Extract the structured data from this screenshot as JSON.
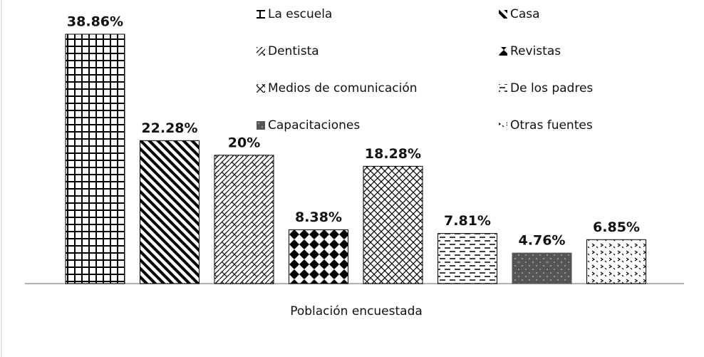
{
  "chart_data": {
    "type": "bar",
    "categories": [
      null
    ],
    "xlabel": "Población encuestada",
    "legend": "top-right",
    "series": [
      {
        "name": "La escuela",
        "color": "#000000",
        "values": [
          38.86
        ],
        "value_labels": [
          "38.86%"
        ]
      },
      {
        "name": "Casa",
        "color": "#000000",
        "values": [
          22.28
        ],
        "value_labels": [
          "22.28%"
        ]
      },
      {
        "name": "Dentista",
        "color": "#000000",
        "values": [
          20
        ],
        "value_labels": [
          "20%"
        ]
      },
      {
        "name": "Revistas",
        "color": "#000000",
        "values": [
          8.38
        ],
        "value_labels": [
          "8.38%"
        ]
      },
      {
        "name": "Medios de comunicación",
        "color": "#000000",
        "values": [
          18.28
        ],
        "value_labels": [
          "18.28%"
        ]
      },
      {
        "name": "De los padres",
        "color": "#000000",
        "values": [
          7.81
        ],
        "value_labels": [
          "7.81%"
        ]
      },
      {
        "name": "Capacitaciones",
        "color": "#555555",
        "values": [
          4.76
        ],
        "value_labels": [
          "4.76%"
        ]
      },
      {
        "name": "Otras fuentes",
        "color": "#000000",
        "values": [
          6.85
        ],
        "value_labels": [
          "6.85%"
        ]
      }
    ]
  }
}
